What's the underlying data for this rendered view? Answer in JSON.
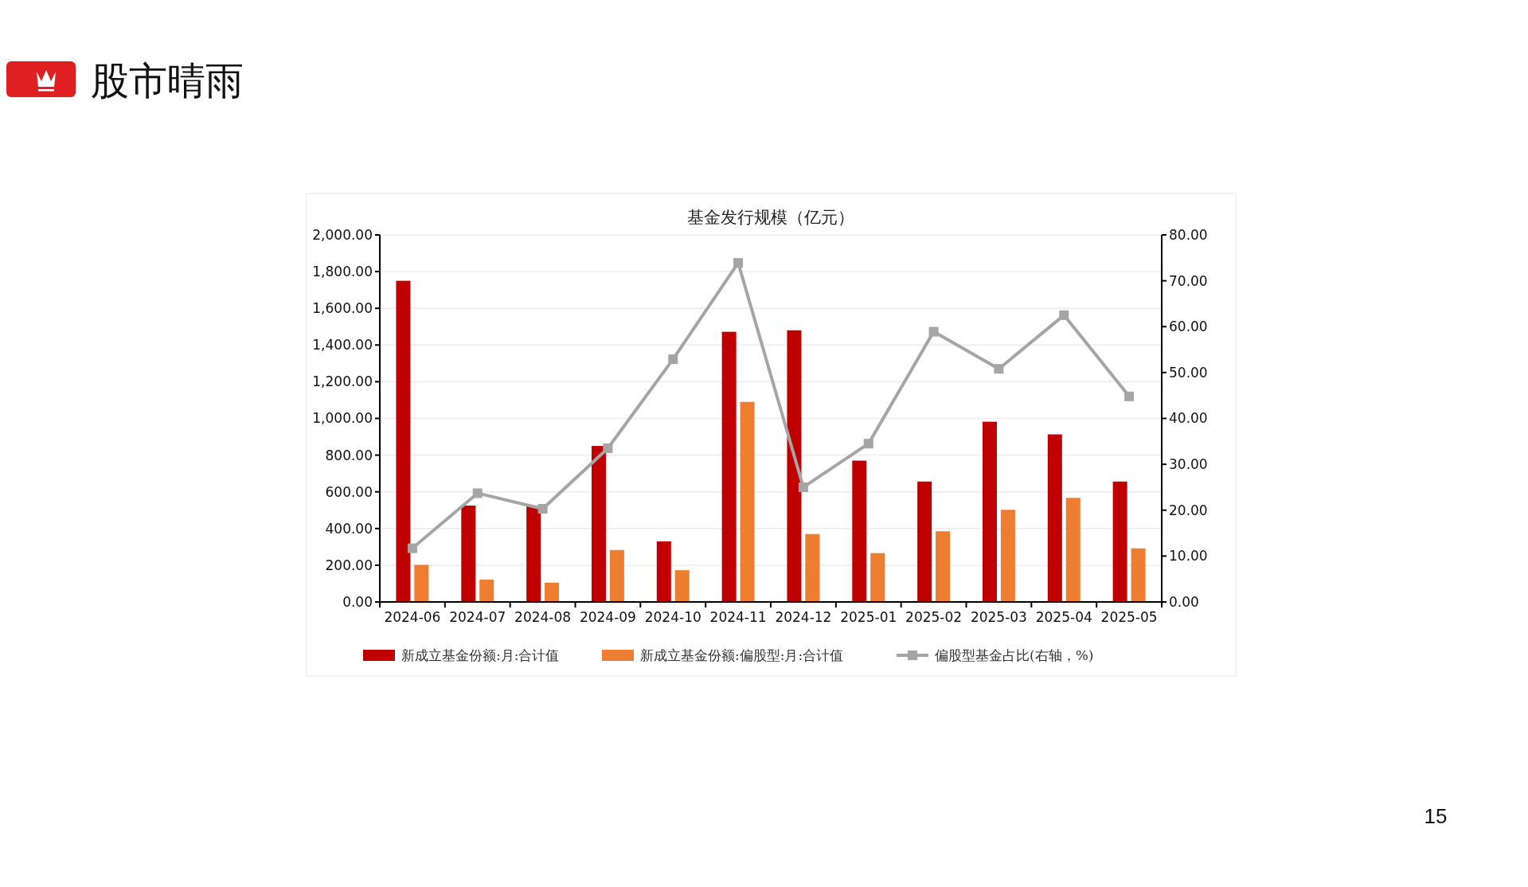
{
  "chart_data": {
    "type": "bar",
    "title": "基金发行规模（亿元）",
    "categories": [
      "2024-06",
      "2024-07",
      "2024-08",
      "2024-09",
      "2024-10",
      "2024-11",
      "2024-12",
      "2025-01",
      "2025-02",
      "2025-03",
      "2025-04",
      "2025-05"
    ],
    "series": [
      {
        "name": "新成立基金份额:月:合计值",
        "color": "#c00000",
        "values": [
          1750,
          525,
          520,
          850,
          330,
          1472,
          1480,
          770,
          656,
          982,
          913,
          656
        ]
      },
      {
        "name": "新成立基金份额:偏股型:月:合计值",
        "color": "#ed7d31",
        "values": [
          202,
          122,
          105,
          283,
          173,
          1090,
          370,
          266,
          385,
          502,
          567,
          292
        ]
      },
      {
        "name": "偏股型基金占比(右轴，%)",
        "color": "#a5a5a5",
        "type": "line",
        "axis": "y2",
        "marker": "square",
        "values": [
          11.7,
          23.7,
          20.3,
          33.5,
          52.9,
          73.9,
          25.0,
          34.5,
          58.9,
          50.8,
          62.5,
          44.8
        ]
      }
    ],
    "ylim": [
      0,
      2000
    ],
    "yticks": [
      {
        "value": 0,
        "label": "0.00"
      },
      {
        "value": 200,
        "label": "200.00"
      },
      {
        "value": 400,
        "label": "400.00"
      },
      {
        "value": 600,
        "label": "600.00"
      },
      {
        "value": 800,
        "label": "800.00"
      },
      {
        "value": 1000,
        "label": "1,000.00"
      },
      {
        "value": 1200,
        "label": "1,200.00"
      },
      {
        "value": 1400,
        "label": "1,400.00"
      },
      {
        "value": 1600,
        "label": "1,600.00"
      },
      {
        "value": 1800,
        "label": "1,800.00"
      },
      {
        "value": 2000,
        "label": "2,000.00"
      }
    ],
    "y2lim": [
      0,
      80
    ],
    "y2ticks": [
      {
        "value": 0,
        "label": "0.00"
      },
      {
        "value": 10,
        "label": "10.00"
      },
      {
        "value": 20,
        "label": "20.00"
      },
      {
        "value": 30,
        "label": "30.00"
      },
      {
        "value": 40,
        "label": "40.00"
      },
      {
        "value": 50,
        "label": "50.00"
      },
      {
        "value": 60,
        "label": "60.00"
      },
      {
        "value": 70,
        "label": "70.00"
      },
      {
        "value": 80,
        "label": "80.00"
      }
    ],
    "grid": "y",
    "legend": "bottom",
    "annotations": [
      "股市晴雨",
      "15"
    ]
  }
}
